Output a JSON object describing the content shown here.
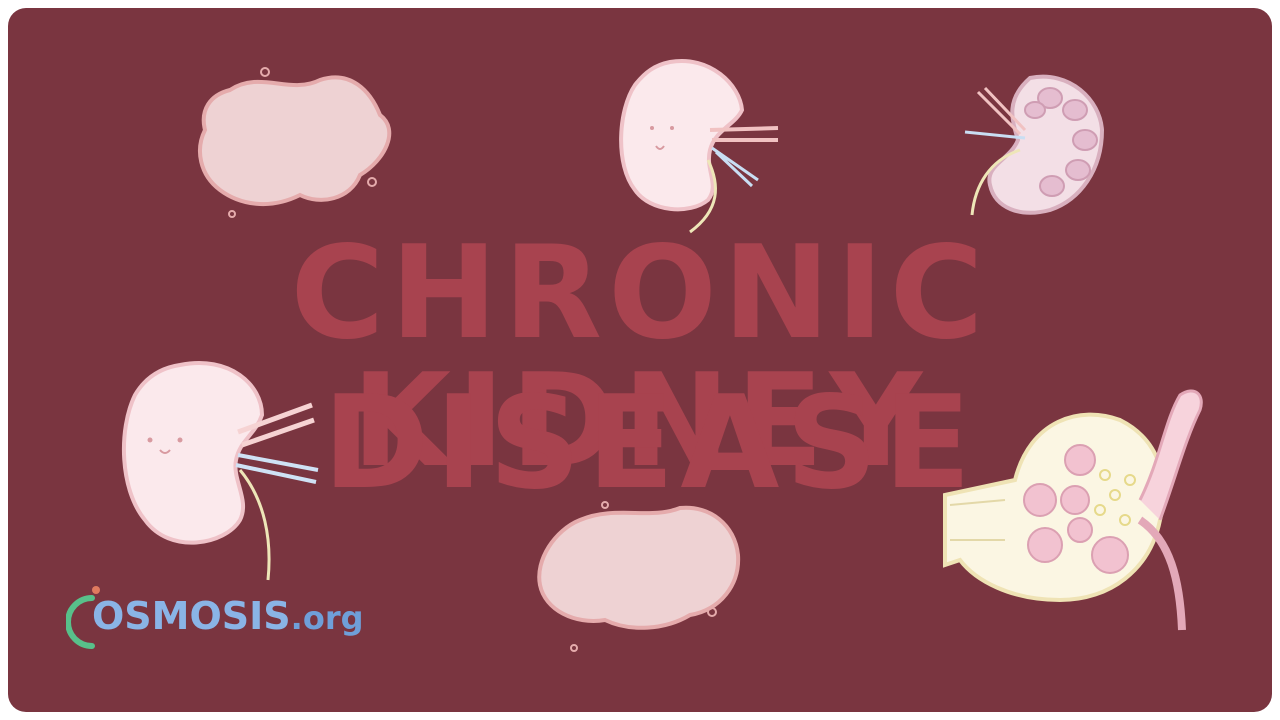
{
  "title": {
    "line1": "CHRONIC KIDNEY",
    "line2": "DISEASE"
  },
  "logo": {
    "name": "OSMOSIS",
    "suffix": ".org"
  },
  "colors": {
    "frame": "#7a3540",
    "title": "#a8434f",
    "background": "#ffffff",
    "illustration": "#f3c9c9",
    "logo": "#8ab4e6"
  },
  "illustrations": [
    "blob-cell-top-left",
    "kidney-top-center",
    "kidney-cross-section-top-right",
    "kidney-smiling-left",
    "blob-cell-bottom-center",
    "nephron-glomerulus-bottom-right"
  ]
}
